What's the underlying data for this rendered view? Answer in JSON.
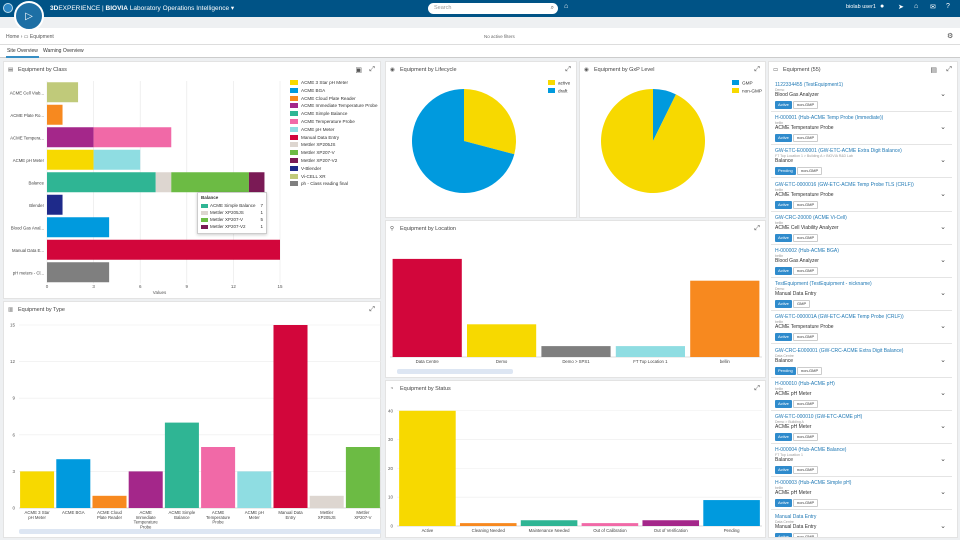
{
  "topbar": {
    "brand_a": "3D",
    "brand_b": "EXPERIENCE | ",
    "brand_c": "BIOVIA",
    "app_name": "Laboratory Operations Intelligence",
    "search_placeholder": "Search",
    "user": "biolab user1"
  },
  "breadcrumb": {
    "home": "Home",
    "page": "Equipment"
  },
  "filters_text": "No active filters",
  "tabs": [
    "Site Overview",
    "Warning Overview"
  ],
  "panels": {
    "by_class": "Equipment by Class",
    "by_type": "Equipment by Type",
    "by_lifecycle": "Equipment by Lifecycle",
    "by_gxp": "Equipment by GxP Level",
    "by_location": "Equipment by Location",
    "by_status": "Equipment by Status",
    "equipment": "Equipment",
    "equipment_count": "(55)"
  },
  "colors": {
    "acme3": "#f7d900",
    "bga": "#009ade",
    "cloud": "#f7891f",
    "immediate": "#a4278a",
    "simple": "#2fb594",
    "temp": "#f169a7",
    "ph": "#8fdde2",
    "manual": "#d2063b",
    "xp205": "#ddd6d0",
    "xp207v": "#6cbb44",
    "xp207v2": "#7a1a55",
    "vbinder": "#1e2a8a",
    "vicell": "#c0ca7a",
    "ph_final": "#7f7f7f",
    "active_blue": "#2f8bcc"
  },
  "chart_data": [
    {
      "type": "bar",
      "orientation": "horizontal-stacked",
      "title": "Equipment by Class",
      "categories": [
        "ACME Cell Viab...",
        "ACME Plate Ro...",
        "ACME Tempera...",
        "ACME pH Meter",
        "Balance",
        "Blender",
        "Blood Gas Anal...",
        "Manual Data E...",
        "pH meters - Cl..."
      ],
      "series": [
        {
          "name": "ACME 3 Star pH Meter",
          "color": "#f7d900",
          "values": [
            0,
            0,
            0,
            3,
            0,
            0,
            0,
            0,
            0
          ]
        },
        {
          "name": "ACME BGA",
          "color": "#009ade",
          "values": [
            0,
            0,
            0,
            0,
            0,
            0,
            4,
            0,
            0
          ]
        },
        {
          "name": "ACME Cloud Plate Reader",
          "color": "#f7891f",
          "values": [
            0,
            1,
            0,
            0,
            0,
            0,
            0,
            0,
            0
          ]
        },
        {
          "name": "ACME Immediate Temperature Probe",
          "color": "#a4278a",
          "values": [
            0,
            0,
            3,
            0,
            0,
            0,
            0,
            0,
            0
          ]
        },
        {
          "name": "ACME Simple Balance",
          "color": "#2fb594",
          "values": [
            0,
            0,
            0,
            0,
            7,
            0,
            0,
            0,
            0
          ]
        },
        {
          "name": "ACME Temperature Probe",
          "color": "#f169a7",
          "values": [
            0,
            0,
            5,
            0,
            0,
            0,
            0,
            0,
            0
          ]
        },
        {
          "name": "ACME pH Meter",
          "color": "#8fdde2",
          "values": [
            0,
            0,
            0,
            3,
            0,
            0,
            0,
            0,
            0
          ]
        },
        {
          "name": "Manual Data Entry",
          "color": "#d2063b",
          "values": [
            0,
            0,
            0,
            0,
            0,
            0,
            0,
            15,
            0
          ]
        },
        {
          "name": "Mettler XP205JS",
          "color": "#ddd6d0",
          "values": [
            0,
            0,
            0,
            0,
            1,
            0,
            0,
            0,
            0
          ]
        },
        {
          "name": "Mettler XP207-V",
          "color": "#6cbb44",
          "values": [
            0,
            0,
            0,
            0,
            5,
            0,
            0,
            0,
            0
          ]
        },
        {
          "name": "Mettler XP207-V2",
          "color": "#7a1a55",
          "values": [
            0,
            0,
            0,
            0,
            1,
            0,
            0,
            0,
            0
          ]
        },
        {
          "name": "V-Blender",
          "color": "#1e2a8a",
          "values": [
            0,
            0,
            0,
            0,
            0,
            1,
            0,
            0,
            0
          ]
        },
        {
          "name": "Vi-CELL XR",
          "color": "#c0ca7a",
          "values": [
            2,
            0,
            0,
            0,
            0,
            0,
            0,
            0,
            0
          ]
        },
        {
          "name": "ph - Class reading final",
          "color": "#7f7f7f",
          "values": [
            0,
            0,
            0,
            0,
            0,
            0,
            0,
            0,
            4
          ]
        }
      ],
      "xlabel": "Values",
      "xticks": [
        0,
        3,
        6,
        9,
        12,
        15
      ],
      "xlim": [
        0,
        15
      ],
      "tooltip": {
        "title": "Balance",
        "rows": [
          {
            "name": "ACME Simple Balance",
            "value": "7",
            "color": "#2fb594"
          },
          {
            "name": "Mettler XP205JS",
            "value": "1",
            "color": "#ddd6d0"
          },
          {
            "name": "Mettler XP207-V",
            "value": "5",
            "color": "#6cbb44"
          },
          {
            "name": "Mettler XP207-V2",
            "value": "1",
            "color": "#7a1a55"
          }
        ]
      }
    },
    {
      "type": "bar",
      "title": "Equipment by Type",
      "categories": [
        "ACME 3 Star pH Meter",
        "ACME BGA",
        "ACME Cloud Plate Reader",
        "ACME Immediate Temperature Probe",
        "ACME Simple Balance",
        "ACME Temperature Probe",
        "ACME pH Meter",
        "Manual Data Entry",
        "Mettler XP205JS",
        "Mettler XP207-V"
      ],
      "values": [
        3,
        4,
        1,
        3,
        7,
        5,
        3,
        15,
        1,
        5
      ],
      "colors": [
        "#f7d900",
        "#009ade",
        "#f7891f",
        "#a4278a",
        "#2fb594",
        "#f169a7",
        "#8fdde2",
        "#d2063b",
        "#ddd6d0",
        "#6cbb44"
      ],
      "yticks": [
        0,
        3,
        6,
        9,
        12,
        15
      ],
      "ylim": [
        0,
        15
      ]
    },
    {
      "type": "pie",
      "title": "Equipment by Lifecycle",
      "labels": [
        "active",
        "draft"
      ],
      "values": [
        16,
        39
      ],
      "colors": [
        "#f7d900",
        "#009ade"
      ]
    },
    {
      "type": "pie",
      "title": "Equipment by GxP Level",
      "labels": [
        "GMP",
        "non-GMP"
      ],
      "values": [
        4,
        51
      ],
      "colors": [
        "#009ade",
        "#f7d900"
      ]
    },
    {
      "type": "bar",
      "title": "Equipment by Location",
      "categories": [
        "Data Centre",
        "Demo",
        "Demo > SPS1",
        "FT Top Location 1",
        "bellin"
      ],
      "values": [
        9,
        3,
        1,
        1,
        7
      ],
      "colors": [
        "#d2063b",
        "#f7d900",
        "#7f7f7f",
        "#8fdde2",
        "#f7891f"
      ],
      "ylim": [
        0,
        10
      ]
    },
    {
      "type": "bar",
      "title": "Equipment by Status",
      "categories": [
        "Active",
        "Cleaning Needed",
        "Maintenance Needed",
        "Out of Calibration",
        "Out of Verification",
        "Pending"
      ],
      "values": [
        40,
        1,
        2,
        1,
        2,
        9
      ],
      "colors": [
        "#f7d900",
        "#f7891f",
        "#2fb594",
        "#f169a7",
        "#a4278a",
        "#009ade"
      ],
      "yticks": [
        0,
        10,
        20,
        30,
        40
      ],
      "ylim": [
        0,
        42
      ]
    }
  ],
  "equipment_list": [
    {
      "title": "1122334455 (TestEquipment1)",
      "sub": "Demo",
      "model": "Blood Gas Analyzer",
      "status": "Active",
      "gxp": "non-GMP"
    },
    {
      "title": "H-000001 (Hub-ACME Temp Probe (Immediate))",
      "sub": "bellin",
      "model": "ACME Temperature Probe",
      "status": "Active",
      "gxp": "non-GMP"
    },
    {
      "title": "GW-ETC-E000001 (GW-ETC-ACME Extra Digit Balance)",
      "sub": "FT Top Location 1 > Building A > BIOVIA R&D Lab",
      "model": "Balance",
      "status": "Pending",
      "gxp": "non-GMP"
    },
    {
      "title": "GW-ETC-0000016 (GW-ETC-ACME Temp Probe TLS (CRLF))",
      "sub": "bellin",
      "model": "ACME Temperature Probe",
      "status": "Active",
      "gxp": "non-GMP"
    },
    {
      "title": "GW-CRC-20000 (ACME Vi-Cell)",
      "sub": "bellin",
      "model": "ACME Cell Viability Analyzer",
      "status": "Active",
      "gxp": "non-GMP"
    },
    {
      "title": "H-000002 (Hub-ACME BGA)",
      "sub": "bellin",
      "model": "Blood Gas Analyzer",
      "status": "Active",
      "gxp": "non-GMP"
    },
    {
      "title": "TestEquipment (TestEquipment - nickname)",
      "sub": "Demo",
      "model": "Manual Data Entry",
      "status": "Active",
      "gxp": "GMP"
    },
    {
      "title": "GW-ETC-000001A (GW-ETC-ACME Temp Probe (CRLF))",
      "sub": "bellin",
      "model": "ACME Temperature Probe",
      "status": "Active",
      "gxp": "non-GMP"
    },
    {
      "title": "GW-CRC-E000001 (GW-CRC-ACME Extra Digit Balance)",
      "sub": "Data Centre",
      "model": "Balance",
      "status": "Pending",
      "gxp": "non-GMP"
    },
    {
      "title": "H-000010 (Hub-ACME pH)",
      "sub": "bellin",
      "model": "ACME pH Meter",
      "status": "Active",
      "gxp": "non-GMP"
    },
    {
      "title": "GW-ETC-000010 (GW-ETC-ACME pH)",
      "sub": "Demo > Building A",
      "model": "ACME pH Meter",
      "status": "Active",
      "gxp": "non-GMP"
    },
    {
      "title": "H-000004 (Hub-ACME Balance)",
      "sub": "FT Top Location 1",
      "model": "Balance",
      "status": "Active",
      "gxp": "non-GMP"
    },
    {
      "title": "H-000003 (Hub-ACME Simple pH)",
      "sub": "bellin",
      "model": "ACME pH Meter",
      "status": "Active",
      "gxp": "non-GMP"
    },
    {
      "title": "Manual Data Entry",
      "sub": "Data Centre",
      "model": "Manual Data Entry",
      "status": "Active",
      "gxp": "non-GMP"
    }
  ]
}
